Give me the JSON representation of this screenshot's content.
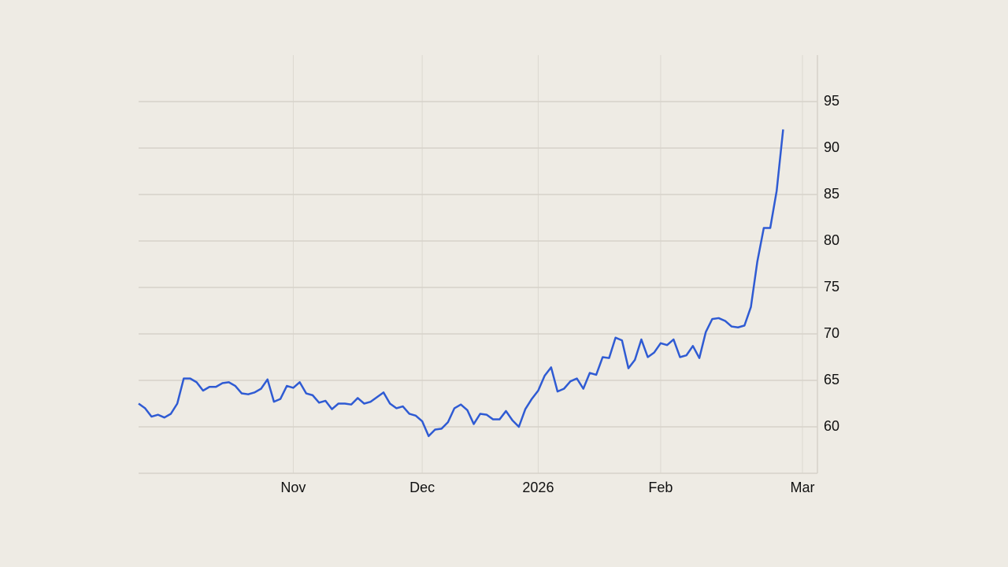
{
  "chart_data": {
    "type": "line",
    "categories": [
      null,
      null,
      null,
      null,
      null,
      null,
      null,
      null,
      null,
      null,
      null,
      null,
      null,
      null,
      null,
      null,
      null,
      null,
      null,
      null,
      null,
      null,
      null,
      null,
      "Nov",
      null,
      null,
      null,
      null,
      null,
      null,
      null,
      null,
      null,
      null,
      null,
      null,
      null,
      null,
      null,
      null,
      null,
      null,
      null,
      "Dec",
      null,
      null,
      null,
      null,
      null,
      null,
      null,
      null,
      null,
      null,
      null,
      null,
      null,
      null,
      null,
      null,
      null,
      "2026",
      null,
      null,
      null,
      null,
      null,
      null,
      null,
      null,
      null,
      null,
      null,
      null,
      null,
      null,
      null,
      null,
      null,
      null,
      "Feb",
      null,
      null,
      null,
      null,
      null,
      null,
      null,
      null,
      null,
      null,
      null,
      null,
      null,
      null,
      null,
      null,
      null,
      null,
      null,
      null,
      null,
      "Mar"
    ],
    "values": [
      62.5,
      62.0,
      61.1,
      61.3,
      61.0,
      61.4,
      62.5,
      65.2,
      65.2,
      64.8,
      63.9,
      64.3,
      64.3,
      64.7,
      64.8,
      64.4,
      63.6,
      63.5,
      63.7,
      64.1,
      65.1,
      62.7,
      63.0,
      64.4,
      64.2,
      64.8,
      63.6,
      63.4,
      62.6,
      62.8,
      61.9,
      62.5,
      62.5,
      62.4,
      63.1,
      62.5,
      62.7,
      63.2,
      63.7,
      62.5,
      62.0,
      62.2,
      61.4,
      61.2,
      60.6,
      59.0,
      59.7,
      59.8,
      60.5,
      62.0,
      62.4,
      61.8,
      60.3,
      61.4,
      61.3,
      60.8,
      60.8,
      61.7,
      60.7,
      60.0,
      61.9,
      63.0,
      63.9,
      65.5,
      66.4,
      63.8,
      64.1,
      64.9,
      65.2,
      64.1,
      65.8,
      65.6,
      67.5,
      67.4,
      69.6,
      69.3,
      66.3,
      67.2,
      69.4,
      67.5,
      68.0,
      69.0,
      68.8,
      69.4,
      67.5,
      67.7,
      68.7,
      67.4,
      70.2,
      71.6,
      71.7,
      71.4,
      70.8,
      70.7,
      70.9,
      72.9,
      77.8,
      81.4,
      81.4,
      85.4,
      92.0,
      null,
      null,
      null
    ],
    "color": "#2f5bd3",
    "ylim": [
      55,
      100
    ],
    "yticks": [
      60,
      65,
      70,
      75,
      80,
      85,
      90,
      95
    ],
    "grid": true
  }
}
